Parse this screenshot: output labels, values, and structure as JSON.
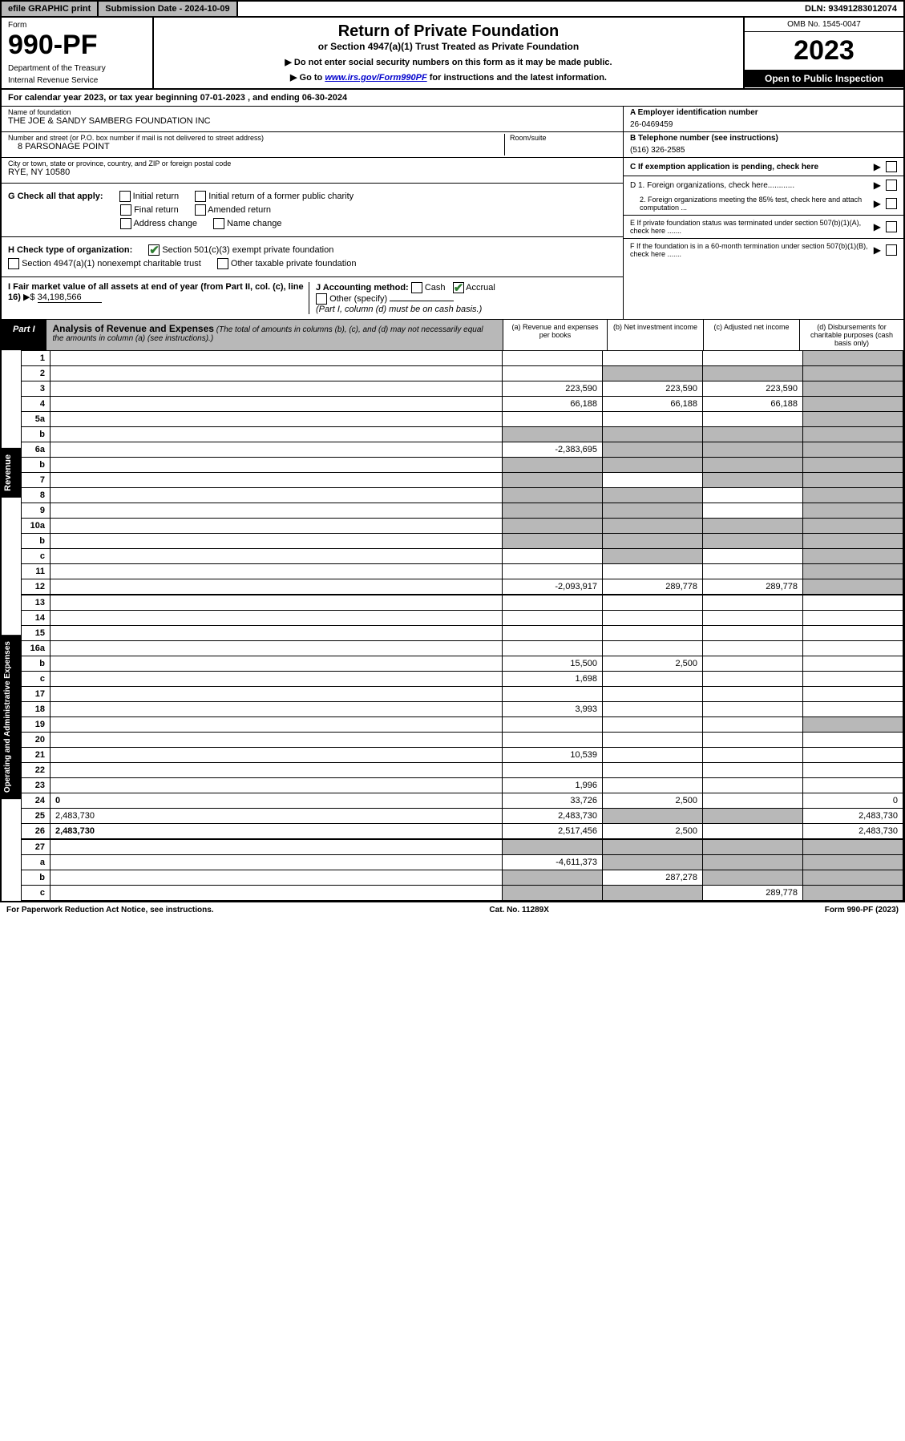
{
  "topbar": {
    "efile": "efile GRAPHIC print",
    "subdate_lbl": "Submission Date - 2024-10-09",
    "dln": "DLN: 93491283012074"
  },
  "header": {
    "form_lbl": "Form",
    "form_no": "990-PF",
    "dept": "Department of the Treasury",
    "irs": "Internal Revenue Service",
    "title": "Return of Private Foundation",
    "subtitle": "or Section 4947(a)(1) Trust Treated as Private Foundation",
    "note1": "▶ Do not enter social security numbers on this form as it may be made public.",
    "note2_pre": "▶ Go to ",
    "note2_link": "www.irs.gov/Form990PF",
    "note2_post": " for instructions and the latest information.",
    "omb": "OMB No. 1545-0047",
    "year": "2023",
    "open": "Open to Public Inspection"
  },
  "calyear": "For calendar year 2023, or tax year beginning 07-01-2023               , and ending 06-30-2024",
  "entity": {
    "name_lbl": "Name of foundation",
    "name": "THE JOE & SANDY SAMBERG FOUNDATION INC",
    "addr_lbl": "Number and street (or P.O. box number if mail is not delivered to street address)",
    "addr": "8 PARSONAGE POINT",
    "room_lbl": "Room/suite",
    "city_lbl": "City or town, state or province, country, and ZIP or foreign postal code",
    "city": "RYE, NY  10580",
    "a_lbl": "A Employer identification number",
    "a_val": "26-0469459",
    "b_lbl": "B Telephone number (see instructions)",
    "b_val": "(516) 326-2585",
    "c_lbl": "C If exemption application is pending, check here",
    "d1": "D 1. Foreign organizations, check here............",
    "d2": "2. Foreign organizations meeting the 85% test, check here and attach computation ...",
    "e": "E If private foundation status was terminated under section 507(b)(1)(A), check here .......",
    "f": "F If the foundation is in a 60-month termination under section 507(b)(1)(B), check here .......",
    "g_lbl": "G Check all that apply:",
    "g_initial": "Initial return",
    "g_initial_former": "Initial return of a former public charity",
    "g_final": "Final return",
    "g_amended": "Amended return",
    "g_addr": "Address change",
    "g_name": "Name change",
    "h_lbl": "H Check type of organization:",
    "h_501c3": "Section 501(c)(3) exempt private foundation",
    "h_4947": "Section 4947(a)(1) nonexempt charitable trust",
    "h_other": "Other taxable private foundation",
    "i_lbl": "I Fair market value of all assets at end of year (from Part II, col. (c), line 16)",
    "i_val": "34,198,566",
    "j_lbl": "J Accounting method:",
    "j_cash": "Cash",
    "j_accrual": "Accrual",
    "j_other": "Other (specify)",
    "j_note": "(Part I, column (d) must be on cash basis.)"
  },
  "part1": {
    "tag": "Part I",
    "title": "Analysis of Revenue and Expenses",
    "note": "(The total of amounts in columns (b), (c), and (d) may not necessarily equal the amounts in column (a) (see instructions).)",
    "col_a": "(a) Revenue and expenses per books",
    "col_b": "(b) Net investment income",
    "col_c": "(c) Adjusted net income",
    "col_d": "(d) Disbursements for charitable purposes (cash basis only)",
    "side_rev": "Revenue",
    "side_exp": "Operating and Administrative Expenses"
  },
  "rows": [
    {
      "n": "1",
      "d": "",
      "a": "",
      "b": "",
      "c": "",
      "shade_d": true
    },
    {
      "n": "2",
      "d": "",
      "a": "",
      "b": "",
      "c": "",
      "shade_b": true,
      "shade_c": true,
      "shade_d": true,
      "bold": false
    },
    {
      "n": "3",
      "d": "",
      "a": "223,590",
      "b": "223,590",
      "c": "223,590",
      "shade_d": true
    },
    {
      "n": "4",
      "d": "",
      "a": "66,188",
      "b": "66,188",
      "c": "66,188",
      "shade_d": true
    },
    {
      "n": "5a",
      "d": "",
      "a": "",
      "b": "",
      "c": "",
      "shade_d": true
    },
    {
      "n": "b",
      "d": "",
      "a": "",
      "b": "",
      "c": "",
      "shade_a": true,
      "shade_b": true,
      "shade_c": true,
      "shade_d": true
    },
    {
      "n": "6a",
      "d": "",
      "a": "-2,383,695",
      "b": "",
      "c": "",
      "shade_b": true,
      "shade_c": true,
      "shade_d": true
    },
    {
      "n": "b",
      "d": "",
      "a": "",
      "b": "",
      "c": "",
      "shade_a": true,
      "shade_b": true,
      "shade_c": true,
      "shade_d": true
    },
    {
      "n": "7",
      "d": "",
      "a": "",
      "b": "",
      "c": "",
      "shade_a": true,
      "shade_c": true,
      "shade_d": true
    },
    {
      "n": "8",
      "d": "",
      "a": "",
      "b": "",
      "c": "",
      "shade_a": true,
      "shade_b": true,
      "shade_d": true
    },
    {
      "n": "9",
      "d": "",
      "a": "",
      "b": "",
      "c": "",
      "shade_a": true,
      "shade_b": true,
      "shade_d": true
    },
    {
      "n": "10a",
      "d": "",
      "a": "",
      "b": "",
      "c": "",
      "shade_a": true,
      "shade_b": true,
      "shade_c": true,
      "shade_d": true
    },
    {
      "n": "b",
      "d": "",
      "a": "",
      "b": "",
      "c": "",
      "shade_a": true,
      "shade_b": true,
      "shade_c": true,
      "shade_d": true
    },
    {
      "n": "c",
      "d": "",
      "a": "",
      "b": "",
      "c": "",
      "shade_b": true,
      "shade_d": true
    },
    {
      "n": "11",
      "d": "",
      "a": "",
      "b": "",
      "c": "",
      "shade_d": true
    },
    {
      "n": "12",
      "d": "",
      "a": "-2,093,917",
      "b": "289,778",
      "c": "289,778",
      "shade_d": true,
      "bold": true
    }
  ],
  "exp_rows": [
    {
      "n": "13",
      "d": "",
      "a": "",
      "b": "",
      "c": ""
    },
    {
      "n": "14",
      "d": "",
      "a": "",
      "b": "",
      "c": ""
    },
    {
      "n": "15",
      "d": "",
      "a": "",
      "b": "",
      "c": ""
    },
    {
      "n": "16a",
      "d": "",
      "a": "",
      "b": "",
      "c": ""
    },
    {
      "n": "b",
      "d": "",
      "a": "15,500",
      "b": "2,500",
      "c": ""
    },
    {
      "n": "c",
      "d": "",
      "a": "1,698",
      "b": "",
      "c": ""
    },
    {
      "n": "17",
      "d": "",
      "a": "",
      "b": "",
      "c": ""
    },
    {
      "n": "18",
      "d": "",
      "a": "3,993",
      "b": "",
      "c": ""
    },
    {
      "n": "19",
      "d": "",
      "a": "",
      "b": "",
      "c": "",
      "shade_d": true
    },
    {
      "n": "20",
      "d": "",
      "a": "",
      "b": "",
      "c": ""
    },
    {
      "n": "21",
      "d": "",
      "a": "10,539",
      "b": "",
      "c": ""
    },
    {
      "n": "22",
      "d": "",
      "a": "",
      "b": "",
      "c": ""
    },
    {
      "n": "23",
      "d": "",
      "a": "1,996",
      "b": "",
      "c": "",
      "icon": true
    },
    {
      "n": "24",
      "d": "0",
      "a": "33,726",
      "b": "2,500",
      "c": "",
      "bold": true
    },
    {
      "n": "25",
      "d": "2,483,730",
      "a": "2,483,730",
      "b": "",
      "c": "",
      "shade_b": true,
      "shade_c": true
    },
    {
      "n": "26",
      "d": "2,483,730",
      "a": "2,517,456",
      "b": "2,500",
      "c": "",
      "bold": true
    }
  ],
  "tot_rows": [
    {
      "n": "27",
      "d": "",
      "a": "",
      "b": "",
      "c": "",
      "shade_a": true,
      "shade_b": true,
      "shade_c": true,
      "shade_d": true
    },
    {
      "n": "a",
      "d": "",
      "a": "-4,611,373",
      "b": "",
      "c": "",
      "shade_b": true,
      "shade_c": true,
      "shade_d": true,
      "bold": true
    },
    {
      "n": "b",
      "d": "",
      "a": "",
      "b": "287,278",
      "c": "",
      "shade_a": true,
      "shade_c": true,
      "shade_d": true,
      "bold": true
    },
    {
      "n": "c",
      "d": "",
      "a": "",
      "b": "",
      "c": "289,778",
      "shade_a": true,
      "shade_b": true,
      "shade_d": true,
      "bold": true
    }
  ],
  "footer": {
    "left": "For Paperwork Reduction Act Notice, see instructions.",
    "mid": "Cat. No. 11289X",
    "right": "Form 990-PF (2023)"
  }
}
